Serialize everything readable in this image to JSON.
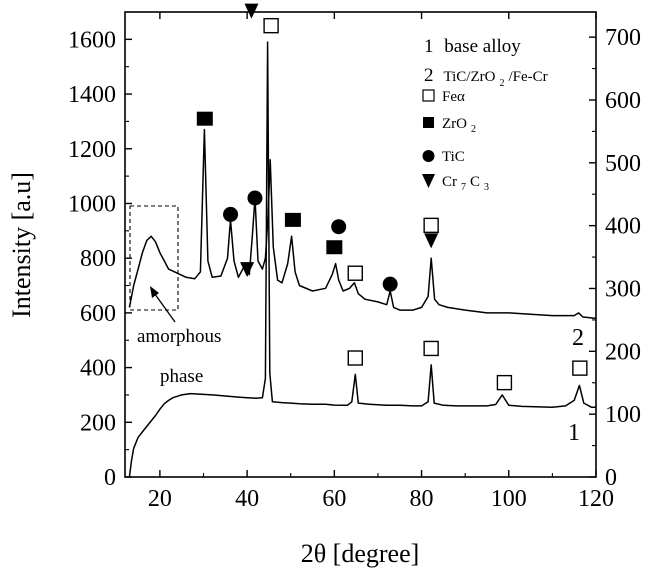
{
  "chart_data": {
    "type": "line",
    "xlabel": "2θ [degree]",
    "ylabel": "Intensity [a.u]",
    "xlim": [
      12,
      120
    ],
    "ylim_left": [
      0,
      1700
    ],
    "ylim_right": [
      0,
      740
    ],
    "xticks": [
      "20",
      "40",
      "60",
      "80",
      "100",
      "120"
    ],
    "yticks_left": [
      "0",
      "200",
      "400",
      "600",
      "800",
      "1000",
      "1200",
      "1400",
      "1600"
    ],
    "yticks_right": [
      "0",
      "100",
      "200",
      "300",
      "400",
      "500",
      "600",
      "700"
    ],
    "legend": {
      "curve1": {
        "number": "1",
        "label": "base alloy"
      },
      "curve2": {
        "number": "2",
        "label_parts": [
          "TiC/ZrO",
          "2",
          "/Fe-Cr"
        ]
      },
      "markers": [
        {
          "symbol": "open-square",
          "text": "Feα",
          "sub": ""
        },
        {
          "symbol": "filled-square",
          "text": "ZrO",
          "sub": "2"
        },
        {
          "symbol": "filled-circle",
          "text": "TiC",
          "sub": ""
        },
        {
          "symbol": "down-triangle",
          "text": "Cr",
          "sub": "7",
          "text2": "C",
          "sub2": "3"
        }
      ]
    },
    "curve_labels": [
      {
        "name": "curve-label-1",
        "text": "1"
      },
      {
        "name": "curve-label-2",
        "text": "2"
      }
    ],
    "annotation": {
      "line1": "amorphous",
      "line2": "phase"
    },
    "series": [
      {
        "name": "1",
        "axis": "left",
        "points": [
          [
            13,
            0
          ],
          [
            13.5,
            60
          ],
          [
            14,
            105
          ],
          [
            15,
            145
          ],
          [
            16,
            165
          ],
          [
            17,
            185
          ],
          [
            18,
            205
          ],
          [
            19,
            225
          ],
          [
            20,
            248
          ],
          [
            21,
            268
          ],
          [
            22,
            280
          ],
          [
            23,
            290
          ],
          [
            24,
            295
          ],
          [
            25,
            300
          ],
          [
            27,
            305
          ],
          [
            30,
            302
          ],
          [
            32,
            300
          ],
          [
            35,
            296
          ],
          [
            38,
            292
          ],
          [
            40,
            290
          ],
          [
            42,
            288
          ],
          [
            43.5,
            290
          ],
          [
            44.2,
            360
          ],
          [
            44.7,
            1590
          ],
          [
            45.2,
            380
          ],
          [
            45.8,
            275
          ],
          [
            48,
            272
          ],
          [
            50,
            270
          ],
          [
            52,
            268
          ],
          [
            55,
            266
          ],
          [
            58,
            266
          ],
          [
            60,
            263
          ],
          [
            63,
            262
          ],
          [
            64,
            275
          ],
          [
            64.8,
            375
          ],
          [
            65.5,
            270
          ],
          [
            68,
            266
          ],
          [
            70,
            264
          ],
          [
            72,
            262
          ],
          [
            75,
            262
          ],
          [
            78,
            260
          ],
          [
            80,
            260
          ],
          [
            81.5,
            275
          ],
          [
            82.2,
            410
          ],
          [
            82.9,
            270
          ],
          [
            85,
            262
          ],
          [
            88,
            260
          ],
          [
            90,
            260
          ],
          [
            95,
            260
          ],
          [
            97,
            265
          ],
          [
            98.5,
            300
          ],
          [
            100,
            262
          ],
          [
            103,
            258
          ],
          [
            106,
            257
          ],
          [
            110,
            255
          ],
          [
            113,
            260
          ],
          [
            115,
            280
          ],
          [
            116.2,
            335
          ],
          [
            117.2,
            270
          ],
          [
            119,
            255
          ],
          [
            120,
            255
          ]
        ]
      },
      {
        "name": "2",
        "axis": "left",
        "points": [
          [
            13,
            620
          ],
          [
            14,
            700
          ],
          [
            15,
            760
          ],
          [
            16,
            820
          ],
          [
            17,
            865
          ],
          [
            18,
            880
          ],
          [
            19,
            860
          ],
          [
            20,
            820
          ],
          [
            21,
            790
          ],
          [
            22,
            760
          ],
          [
            24,
            745
          ],
          [
            26,
            730
          ],
          [
            28,
            725
          ],
          [
            29.3,
            750
          ],
          [
            30.2,
            1270
          ],
          [
            31,
            790
          ],
          [
            32,
            730
          ],
          [
            34,
            735
          ],
          [
            35.5,
            800
          ],
          [
            36.2,
            940
          ],
          [
            37,
            790
          ],
          [
            38,
            730
          ],
          [
            39.5,
            775
          ],
          [
            40.5,
            740
          ],
          [
            41.2,
            880
          ],
          [
            41.8,
            1020
          ],
          [
            42.5,
            790
          ],
          [
            43.5,
            760
          ],
          [
            44.2,
            800
          ],
          [
            44.8,
            950
          ],
          [
            45.3,
            1160
          ],
          [
            46,
            840
          ],
          [
            47,
            720
          ],
          [
            48,
            710
          ],
          [
            49.3,
            780
          ],
          [
            50.2,
            880
          ],
          [
            51,
            750
          ],
          [
            52,
            700
          ],
          [
            55,
            680
          ],
          [
            58,
            690
          ],
          [
            59.5,
            740
          ],
          [
            60.3,
            780
          ],
          [
            61,
            720
          ],
          [
            62,
            680
          ],
          [
            63.5,
            690
          ],
          [
            64.6,
            710
          ],
          [
            65.5,
            670
          ],
          [
            67,
            650
          ],
          [
            70,
            640
          ],
          [
            72,
            630
          ],
          [
            72.8,
            680
          ],
          [
            73.6,
            620
          ],
          [
            75,
            610
          ],
          [
            78,
            610
          ],
          [
            80,
            620
          ],
          [
            81.5,
            660
          ],
          [
            82.2,
            800
          ],
          [
            83,
            650
          ],
          [
            84,
            630
          ],
          [
            86,
            620
          ],
          [
            90,
            610
          ],
          [
            95,
            600
          ],
          [
            100,
            600
          ],
          [
            105,
            595
          ],
          [
            110,
            590
          ],
          [
            115,
            590
          ],
          [
            116,
            600
          ],
          [
            117,
            585
          ],
          [
            120,
            580
          ]
        ]
      }
    ],
    "peak_markers": [
      {
        "symbol": "filled-square",
        "x": 30.3,
        "y": 1310
      },
      {
        "symbol": "filled-circle",
        "x": 36.2,
        "y": 960
      },
      {
        "symbol": "filled-circle",
        "x": 41.8,
        "y": 1020
      },
      {
        "symbol": "down-triangle",
        "x": 40.0,
        "y": 760
      },
      {
        "symbol": "down-triangle",
        "x": 41.0,
        "y": 1705
      },
      {
        "symbol": "open-square",
        "x": 45.5,
        "y": 1650
      },
      {
        "symbol": "filled-square",
        "x": 50.5,
        "y": 940
      },
      {
        "symbol": "filled-circle",
        "x": 61.0,
        "y": 915
      },
      {
        "symbol": "filled-square",
        "x": 60.0,
        "y": 840
      },
      {
        "symbol": "open-square",
        "x": 64.8,
        "y": 745
      },
      {
        "symbol": "filled-circle",
        "x": 72.8,
        "y": 705
      },
      {
        "symbol": "open-square",
        "x": 82.2,
        "y": 920
      },
      {
        "symbol": "down-triangle",
        "x": 82.2,
        "y": 865
      },
      {
        "symbol": "open-square",
        "x": 64.8,
        "y": 435
      },
      {
        "symbol": "open-square",
        "x": 82.2,
        "y": 470
      },
      {
        "symbol": "open-square",
        "x": 99.0,
        "y": 345
      },
      {
        "symbol": "open-square",
        "x": 116.3,
        "y": 398
      }
    ]
  }
}
